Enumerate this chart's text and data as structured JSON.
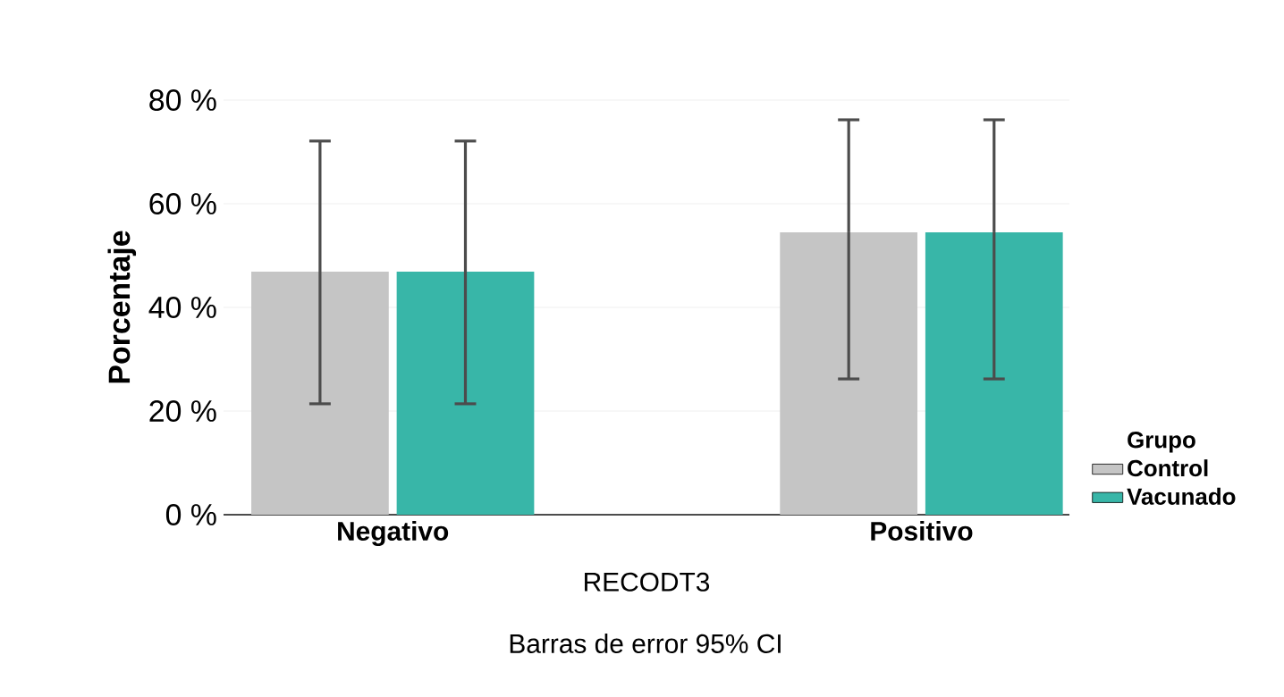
{
  "chart_data": {
    "type": "bar",
    "categories": [
      "Negativo",
      "Positivo"
    ],
    "xlabel": "RECODT3",
    "ylabel": "Porcentaje",
    "legend_title": "Grupo",
    "annotations": [
      "Barras de error 95% CI"
    ],
    "series": [
      {
        "name": "Control",
        "color": "#c5c5c5",
        "values": [
          46.9,
          54.5
        ],
        "errors": [
          [
            21.4,
            72.1
          ],
          [
            26.2,
            76.2
          ]
        ]
      },
      {
        "name": "Vacunado",
        "color": "#38b6a8",
        "values": [
          46.9,
          54.5
        ],
        "errors": [
          [
            21.4,
            72.1
          ],
          [
            26.2,
            76.2
          ]
        ]
      }
    ],
    "ylim": [
      0,
      80
    ],
    "yticks": [
      {
        "value": 0,
        "label": "0 %"
      },
      {
        "value": 20,
        "label": "20 %"
      },
      {
        "value": 40,
        "label": "40 %"
      },
      {
        "value": 60,
        "label": "60 %"
      },
      {
        "value": 80,
        "label": "80 %"
      }
    ],
    "grid": "y",
    "legend": "right"
  }
}
